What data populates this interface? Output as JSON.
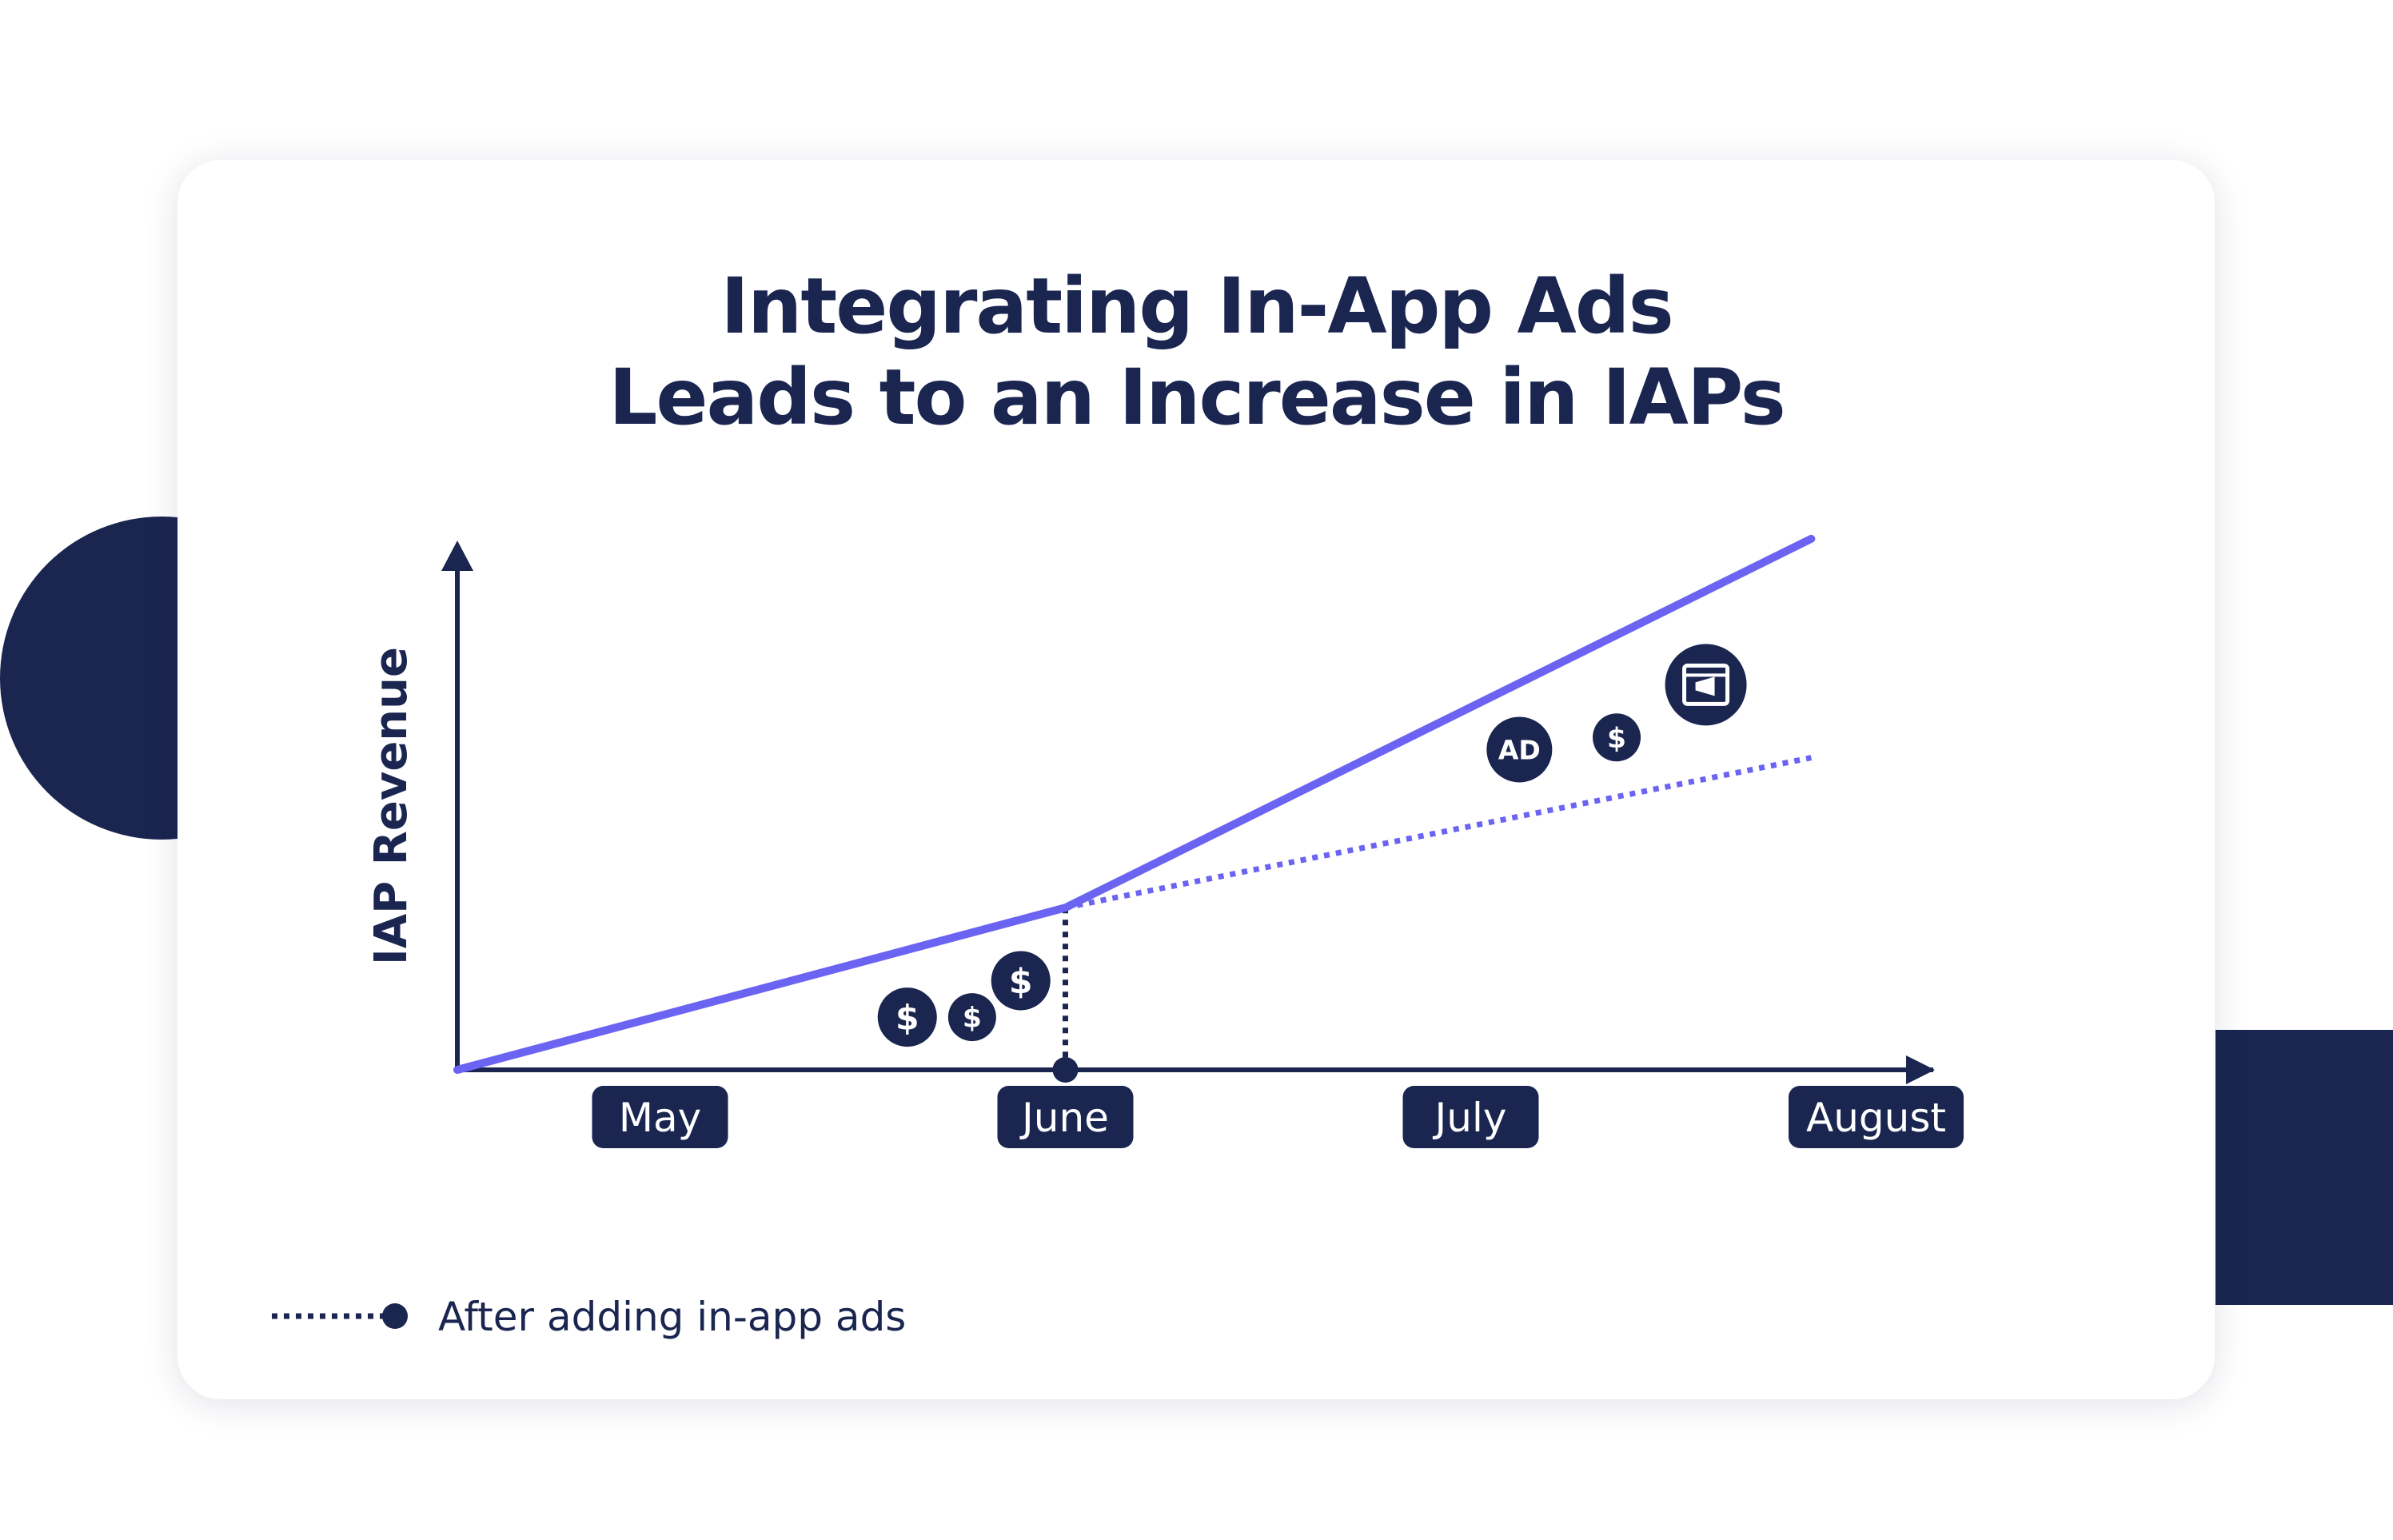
{
  "title": {
    "line1": "Integrating In-App Ads",
    "line2": "Leads to an Increase in IAPs"
  },
  "colors": {
    "navy": "#1a2550",
    "accent": "#6b63f2",
    "card": "#ffffff"
  },
  "chart_data": {
    "type": "line",
    "title": "Integrating In-App Ads Leads to an Increase in IAPs",
    "ylabel": "IAP Revenue",
    "xlabel": "",
    "categories": [
      "May",
      "June",
      "July",
      "August"
    ],
    "x_range": [
      0,
      3.34
    ],
    "y_range": [
      0,
      3.34
    ],
    "event_x": 1.5,
    "series": [
      {
        "key": "actual",
        "style": "solid",
        "x": [
          0,
          1.5,
          3.34
        ],
        "y": [
          0,
          0.4,
          1.31
        ]
      },
      {
        "key": "after",
        "name": "After adding in-app ads",
        "style": "dotted",
        "x": [
          1.5,
          3.34
        ],
        "y": [
          0.4,
          0.77
        ]
      }
    ],
    "legend": {
      "label": "After adding in-app ads",
      "position": "bottom-left"
    },
    "grid": false,
    "annotations": [
      {
        "icon": "dollar-icon",
        "x": 1.11,
        "y": 0.13
      },
      {
        "icon": "dollar-icon",
        "x": 1.27,
        "y": 0.13
      },
      {
        "icon": "dollar-icon",
        "x": 1.39,
        "y": 0.22
      },
      {
        "icon": "ad-badge-icon",
        "label": "AD",
        "x": 2.62,
        "y": 0.79
      },
      {
        "icon": "dollar-icon",
        "x": 2.86,
        "y": 0.82
      },
      {
        "icon": "megaphone-browser-icon",
        "x": 3.08,
        "y": 0.95
      }
    ]
  }
}
